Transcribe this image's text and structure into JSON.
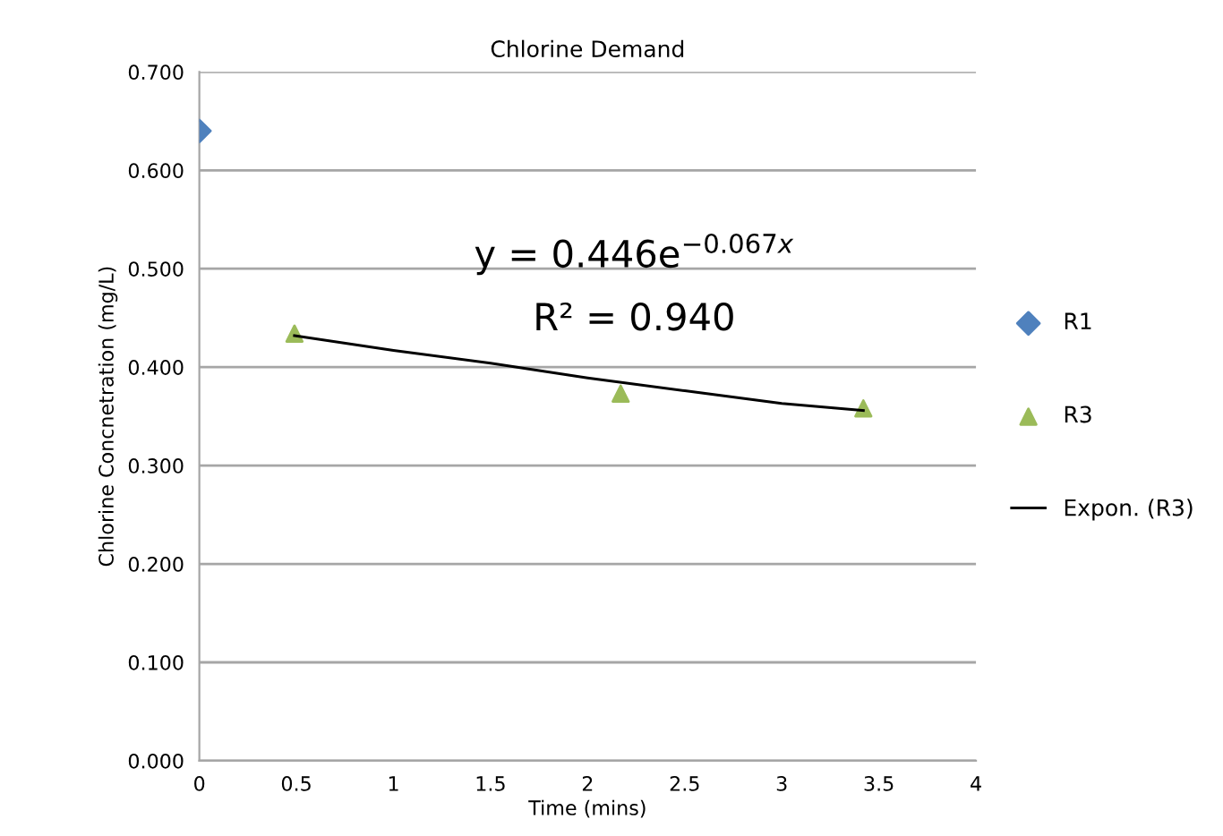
{
  "chart_data": {
    "type": "scatter",
    "title": "Chlorine Demand",
    "xlabel": "Time (mins)",
    "ylabel": "Chlorine Concnetration (mg/L)",
    "xlim": [
      0,
      4
    ],
    "xticks": [
      0,
      0.5,
      1,
      1.5,
      2,
      2.5,
      3,
      3.5,
      4
    ],
    "ylim": [
      0,
      0.7
    ],
    "yticks": [
      {
        "value": 0,
        "label": "0.000"
      },
      {
        "value": 0.1,
        "label": "0.100"
      },
      {
        "value": 0.2,
        "label": "0.200"
      },
      {
        "value": 0.3,
        "label": "0.300"
      },
      {
        "value": 0.4,
        "label": "0.400"
      },
      {
        "value": 0.5,
        "label": "0.500"
      },
      {
        "value": 0.6,
        "label": "0.600"
      },
      {
        "value": 0.7,
        "label": "0.700"
      }
    ],
    "grid": "y",
    "legend": "right",
    "annotations": [
      "y = 0.446e$^{−0.067x}$",
      "R² = 0.940"
    ],
    "series": [
      {
        "name": "R1",
        "color": "#4f81bd",
        "marker": "diamond",
        "x": [
          0
        ],
        "values": [
          0.64
        ]
      },
      {
        "name": "R3",
        "color": "#9bbb59",
        "marker": "triangle",
        "x": [
          0.49,
          2.17,
          3.42
        ],
        "values": [
          0.434,
          0.373,
          0.358
        ]
      },
      {
        "name": "Expon. (R3)",
        "type": "line",
        "color": "#000000",
        "marker": "none",
        "line_style": "solid",
        "x": [
          0.49,
          1.0,
          1.5,
          2.0,
          2.5,
          3.0,
          3.42
        ],
        "values": [
          0.432,
          0.417,
          0.404,
          0.389,
          0.376,
          0.363,
          0.356
        ]
      }
    ]
  }
}
